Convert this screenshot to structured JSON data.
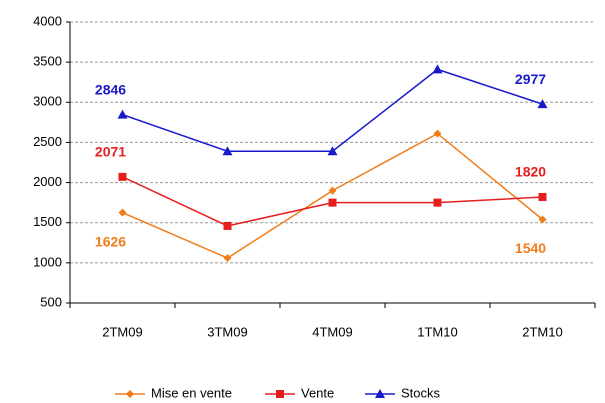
{
  "chart_data": {
    "type": "line",
    "categories": [
      "2TM09",
      "3TM09",
      "4TM09",
      "1TM10",
      "2TM10"
    ],
    "series": [
      {
        "name": "Mise en vente",
        "color": "#f07d1a",
        "marker": "diamond",
        "values": [
          1626,
          1060,
          1900,
          2610,
          1540
        ],
        "value_labels": [
          "1626",
          null,
          null,
          null,
          "1540"
        ]
      },
      {
        "name": "Vente",
        "color": "#e61e1e",
        "marker": "square",
        "values": [
          2071,
          1460,
          1750,
          1750,
          1820
        ],
        "value_labels": [
          "2071",
          null,
          null,
          null,
          "1820"
        ]
      },
      {
        "name": "Stocks",
        "color": "#1a1acc",
        "marker": "triangle",
        "values": [
          2846,
          2390,
          2390,
          3410,
          2977
        ],
        "value_labels": [
          "2846",
          null,
          null,
          null,
          "2977"
        ]
      }
    ],
    "ylim": [
      500,
      4000
    ],
    "yticks": [
      500,
      1000,
      1500,
      2000,
      2500,
      3000,
      3500,
      4000
    ],
    "grid": true,
    "legend": "bottom"
  }
}
